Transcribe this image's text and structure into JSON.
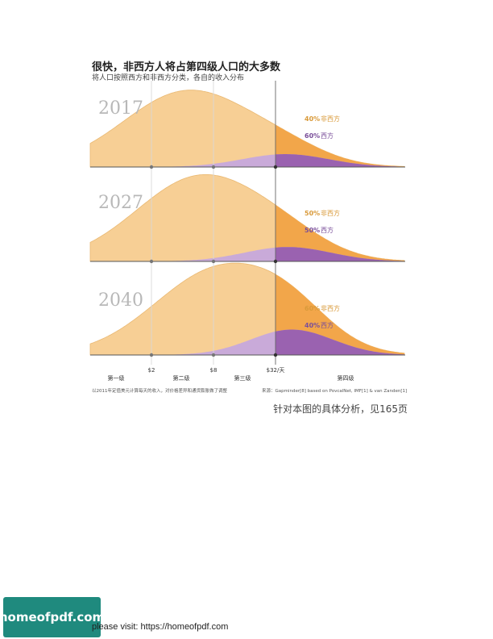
{
  "title": "很快，非西方人将占第四级人口的大多数",
  "subtitle": "将人口按照西方和非西方分类，各自的收入分布",
  "footnote_left": "以2011年定值美元计算每天的收入，对价格差异和通货膨胀做了调整",
  "footnote_right": "来源：Gapminder[8] based on PovcalNet, IMF[1] & van Zanden[1]",
  "page_ref": "针对本图的具体分析，见165页",
  "logo_text": "homeofpdf.com",
  "visit_text": "please visit: https://homeofpdf.com",
  "colors": {
    "non_western": "#f7cf95",
    "non_western_dark": "#f2a64a",
    "western_light": "#c9aad9",
    "western_dark": "#9a62b0",
    "pct_non_western": "#d99a3a",
    "pct_western": "#7a4f9a"
  },
  "chart_data": {
    "type": "area",
    "x_scale": "log",
    "x_ticks": [
      "$2",
      "$8",
      "$32/天"
    ],
    "x_tick_values": [
      2,
      8,
      32
    ],
    "levels": [
      "第一级",
      "第二级",
      "第三级",
      "第四级"
    ],
    "panels": [
      {
        "year": "2017",
        "series": [
          {
            "name": "非西方",
            "share": "40%",
            "peak_income": 4.5,
            "peak": 1.0,
            "spread": 0.62
          },
          {
            "name": "西方",
            "share": "60%",
            "peak_income": 40,
            "peak": 0.17,
            "spread": 0.42
          }
        ]
      },
      {
        "year": "2027",
        "series": [
          {
            "name": "非西方",
            "share": "50%",
            "peak_income": 6,
            "peak": 1.0,
            "spread": 0.62
          },
          {
            "name": "西方",
            "share": "50%",
            "peak_income": 42,
            "peak": 0.17,
            "spread": 0.42
          }
        ]
      },
      {
        "year": "2040",
        "series": [
          {
            "name": "非西方",
            "share": "60%",
            "peak_income": 9,
            "peak": 1.0,
            "spread": 0.62
          },
          {
            "name": "西方",
            "share": "40%",
            "peak_income": 46,
            "peak": 0.3,
            "spread": 0.4
          }
        ]
      }
    ]
  }
}
